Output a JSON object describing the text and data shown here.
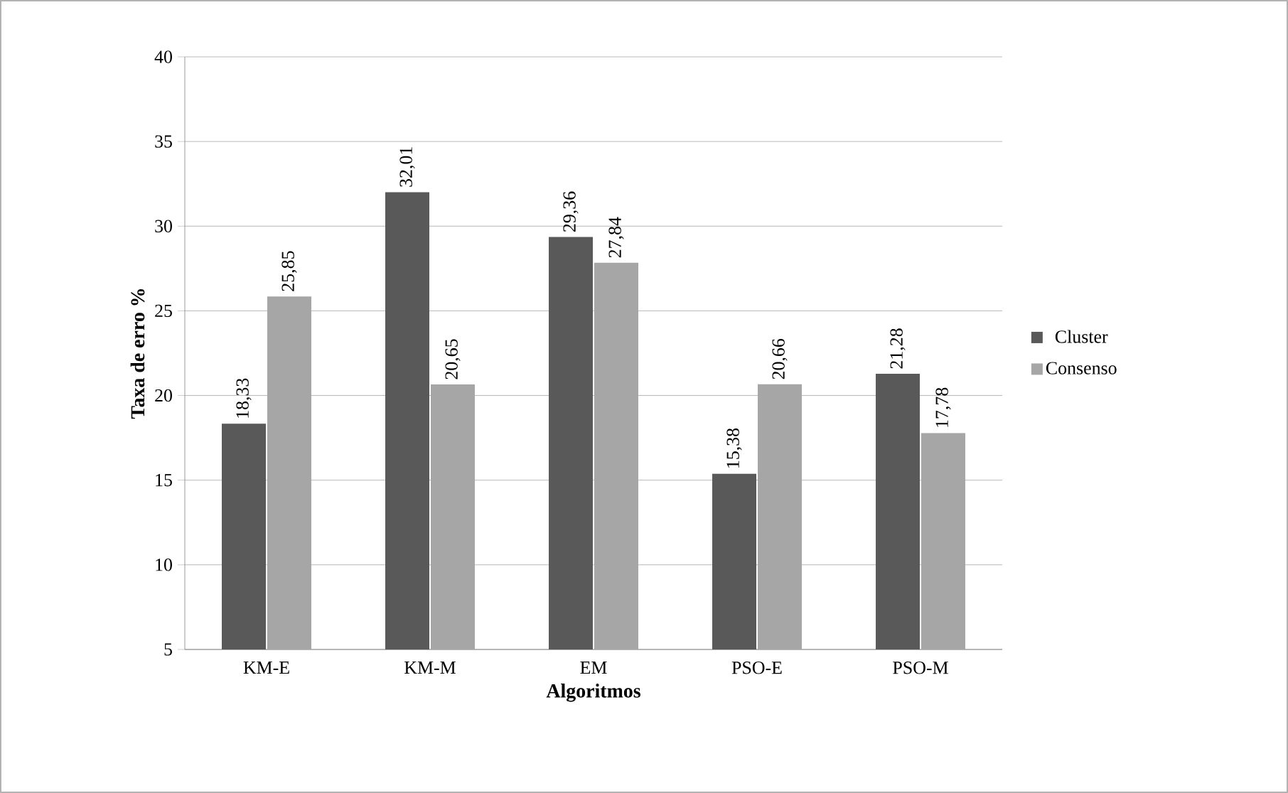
{
  "chart_data": {
    "type": "bar",
    "xlabel": "Algoritmos",
    "ylabel": "Taxa de erro %",
    "categories": [
      "KM-E",
      "KM-M",
      "EM",
      "PSO-E",
      "PSO-M"
    ],
    "series": [
      {
        "name": "Cluster",
        "color": "#595959",
        "values": [
          18.33,
          32.01,
          29.36,
          15.38,
          21.28
        ],
        "value_labels": [
          "18,33",
          "32,01",
          "29,36",
          "15,38",
          "21,28"
        ]
      },
      {
        "name": "Consenso",
        "color": "#a6a6a6",
        "values": [
          25.85,
          20.65,
          27.84,
          20.66,
          17.78
        ],
        "value_labels": [
          "25,85",
          "20,65",
          "27,84",
          "20,66",
          "17,78"
        ]
      }
    ],
    "ylim": [
      5,
      40
    ],
    "yticks": [
      5,
      10,
      15,
      20,
      25,
      30,
      35,
      40
    ],
    "grid": "y",
    "legend": "right"
  }
}
